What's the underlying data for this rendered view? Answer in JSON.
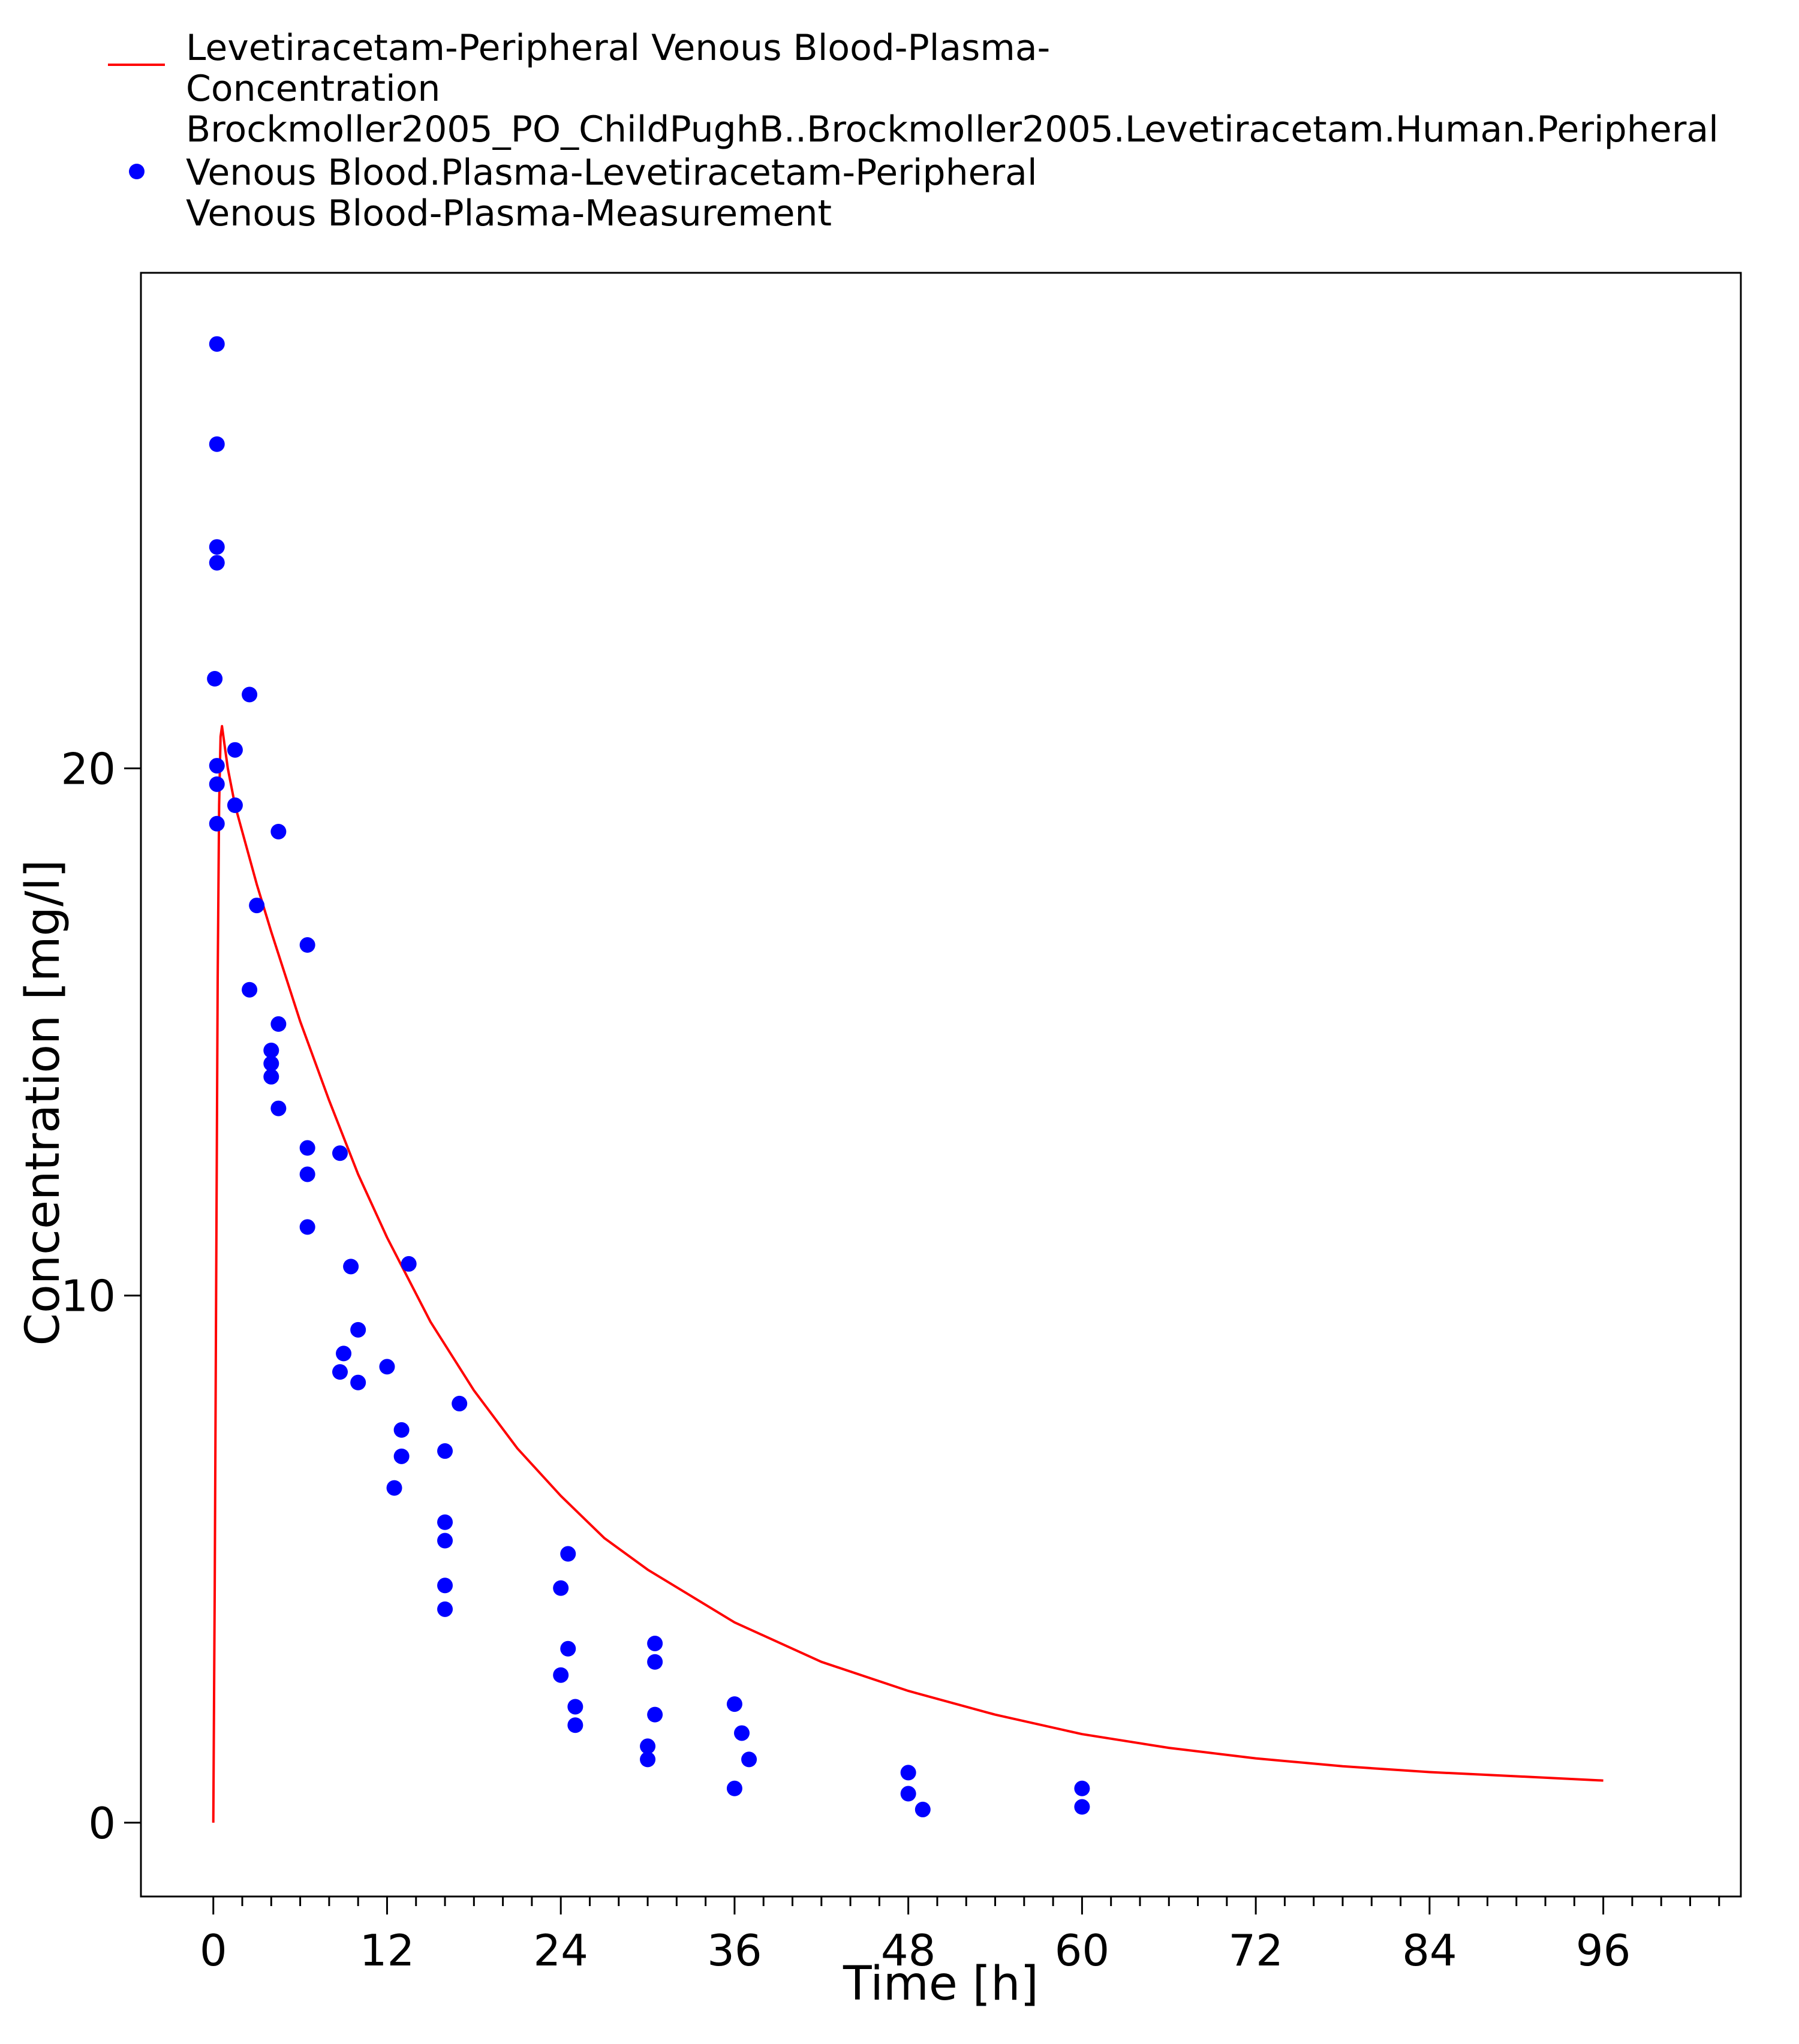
{
  "chart_data": {
    "type": "scatter",
    "xlabel": "Time [h]",
    "ylabel": "Concentration [mg/l]",
    "xlim": [
      -5,
      105.5
    ],
    "ylim": [
      -1.4,
      29.4
    ],
    "x_ticks": [
      0,
      12,
      24,
      36,
      48,
      60,
      72,
      84,
      96
    ],
    "x_minor_step": 2,
    "y_ticks": [
      0,
      10,
      20
    ],
    "grid": false,
    "legend": {
      "placement": "top-left-outside",
      "entries": [
        {
          "series": 0,
          "lines": [
            "Levetiracetam-Peripheral Venous Blood-Plasma-",
            "Concentration",
            "Brockmoller2005_PO_ChildPughB..Brockmoller2005.Levetiracetam.Human.Peripheral"
          ]
        },
        {
          "series": 1,
          "lines": [
            "Venous Blood.Plasma-Levetiracetam-Peripheral",
            "Venous Blood-Plasma-Measurement"
          ]
        }
      ]
    },
    "series": [
      {
        "name": "Levetiracetam-Peripheral Venous Blood-Plasma-Concentration Brockmoller2005_PO_ChildPughB..Brockmoller2005.Levetiracetam.Human.Peripheral",
        "kind": "line",
        "color": "#ff0000",
        "x": [
          0,
          0.1,
          0.2,
          0.3,
          0.4,
          0.5,
          0.6,
          0.7,
          0.8,
          1.0,
          1.5,
          2,
          3,
          4,
          6,
          8,
          10,
          12,
          15,
          18,
          21,
          24,
          27,
          30,
          36,
          42,
          48,
          54,
          60,
          66,
          72,
          78,
          84,
          90,
          96
        ],
        "y": [
          0,
          4.5,
          10.5,
          16.0,
          19.3,
          20.6,
          20.8,
          20.6,
          20.4,
          20.0,
          19.3,
          18.8,
          17.8,
          16.9,
          15.2,
          13.7,
          12.3,
          11.1,
          9.5,
          8.2,
          7.1,
          6.2,
          5.4,
          4.8,
          3.8,
          3.05,
          2.5,
          2.05,
          1.68,
          1.42,
          1.22,
          1.07,
          0.96,
          0.88,
          0.8
        ]
      },
      {
        "name": "Venous Blood.Plasma-Levetiracetam-Peripheral Venous Blood-Plasma-Measurement",
        "kind": "scatter",
        "color": "#0000ff",
        "points": [
          [
            0.25,
            28.05
          ],
          [
            0.25,
            26.15
          ],
          [
            0.25,
            24.2
          ],
          [
            0.25,
            23.9
          ],
          [
            0.1,
            21.7
          ],
          [
            0.25,
            20.05
          ],
          [
            0.25,
            19.7
          ],
          [
            0.25,
            18.95
          ],
          [
            1.5,
            20.35
          ],
          [
            1.5,
            19.3
          ],
          [
            2.5,
            21.4
          ],
          [
            3.0,
            17.4
          ],
          [
            2.5,
            15.8
          ],
          [
            4.5,
            18.8
          ],
          [
            4.5,
            15.15
          ],
          [
            4.0,
            14.65
          ],
          [
            4.0,
            14.4
          ],
          [
            4.0,
            14.15
          ],
          [
            4.5,
            13.55
          ],
          [
            6.5,
            16.65
          ],
          [
            6.5,
            12.8
          ],
          [
            6.5,
            12.3
          ],
          [
            6.5,
            11.3
          ],
          [
            8.75,
            12.7
          ],
          [
            9.5,
            10.55
          ],
          [
            9.0,
            8.9
          ],
          [
            8.75,
            8.55
          ],
          [
            10.0,
            9.35
          ],
          [
            10.0,
            8.35
          ],
          [
            13.5,
            10.6
          ],
          [
            12.0,
            8.65
          ],
          [
            13.0,
            7.45
          ],
          [
            13.0,
            6.95
          ],
          [
            12.5,
            6.35
          ],
          [
            17.0,
            7.95
          ],
          [
            16.0,
            7.05
          ],
          [
            16.0,
            5.7
          ],
          [
            16.0,
            5.35
          ],
          [
            16.0,
            4.5
          ],
          [
            16.0,
            4.05
          ],
          [
            24.5,
            5.1
          ],
          [
            24.0,
            4.45
          ],
          [
            24.5,
            3.3
          ],
          [
            24.0,
            2.8
          ],
          [
            25.0,
            2.2
          ],
          [
            25.0,
            1.85
          ],
          [
            30.5,
            3.4
          ],
          [
            30.5,
            3.05
          ],
          [
            30.5,
            2.05
          ],
          [
            30.0,
            1.45
          ],
          [
            30.0,
            1.2
          ],
          [
            36.0,
            2.25
          ],
          [
            36.5,
            1.7
          ],
          [
            37.0,
            1.2
          ],
          [
            36.0,
            0.65
          ],
          [
            48.0,
            0.95
          ],
          [
            48.0,
            0.55
          ],
          [
            49.0,
            0.25
          ],
          [
            60.0,
            0.65
          ],
          [
            60.0,
            0.3
          ]
        ]
      }
    ]
  }
}
